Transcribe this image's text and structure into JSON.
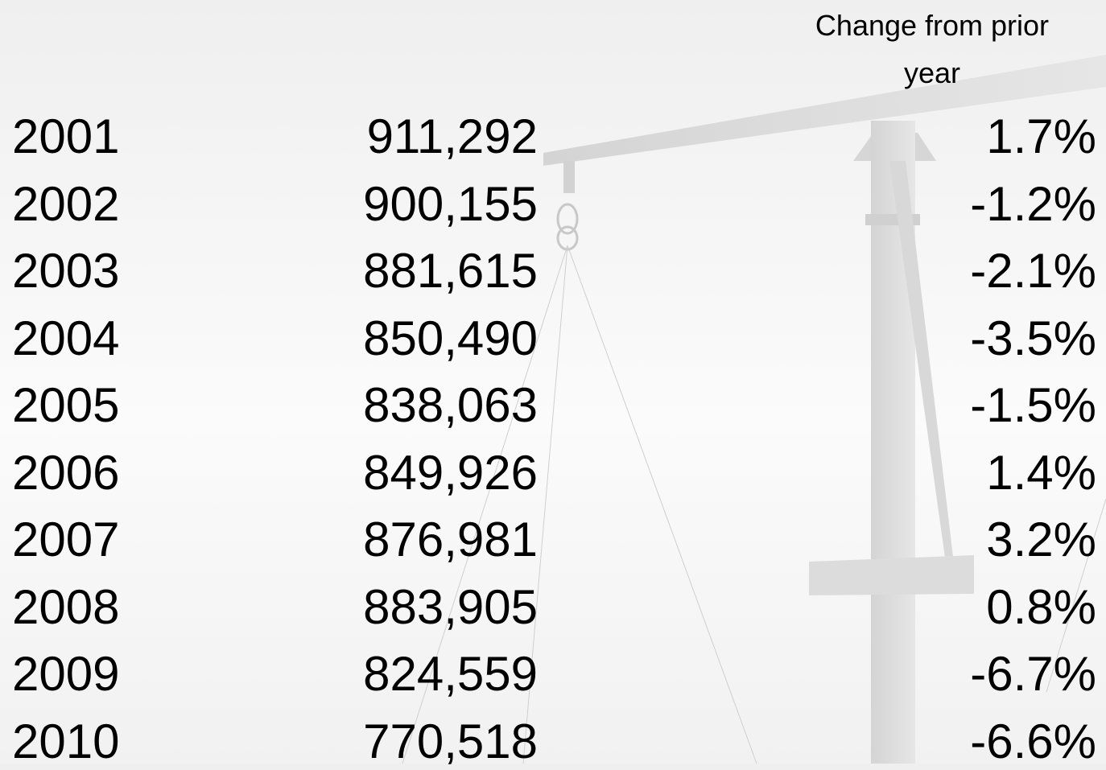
{
  "table": {
    "header": "Change from prior year",
    "rows": [
      [
        "2001",
        "911,292",
        "1.7%"
      ],
      [
        "2002",
        "900,155",
        "-1.2%"
      ],
      [
        "2003",
        "881,615",
        "-2.1%"
      ],
      [
        "2004",
        "850,490",
        "-3.5%"
      ],
      [
        "2005",
        "838,063",
        "-1.5%"
      ],
      [
        "2006",
        "849,926",
        "1.4%"
      ],
      [
        "2007",
        "876,981",
        "3.2%"
      ],
      [
        "2008",
        "883,905",
        "0.8%"
      ],
      [
        "2009",
        "824,559",
        "-6.7%"
      ],
      [
        "2010",
        "770,518",
        "-6.6%"
      ]
    ]
  }
}
